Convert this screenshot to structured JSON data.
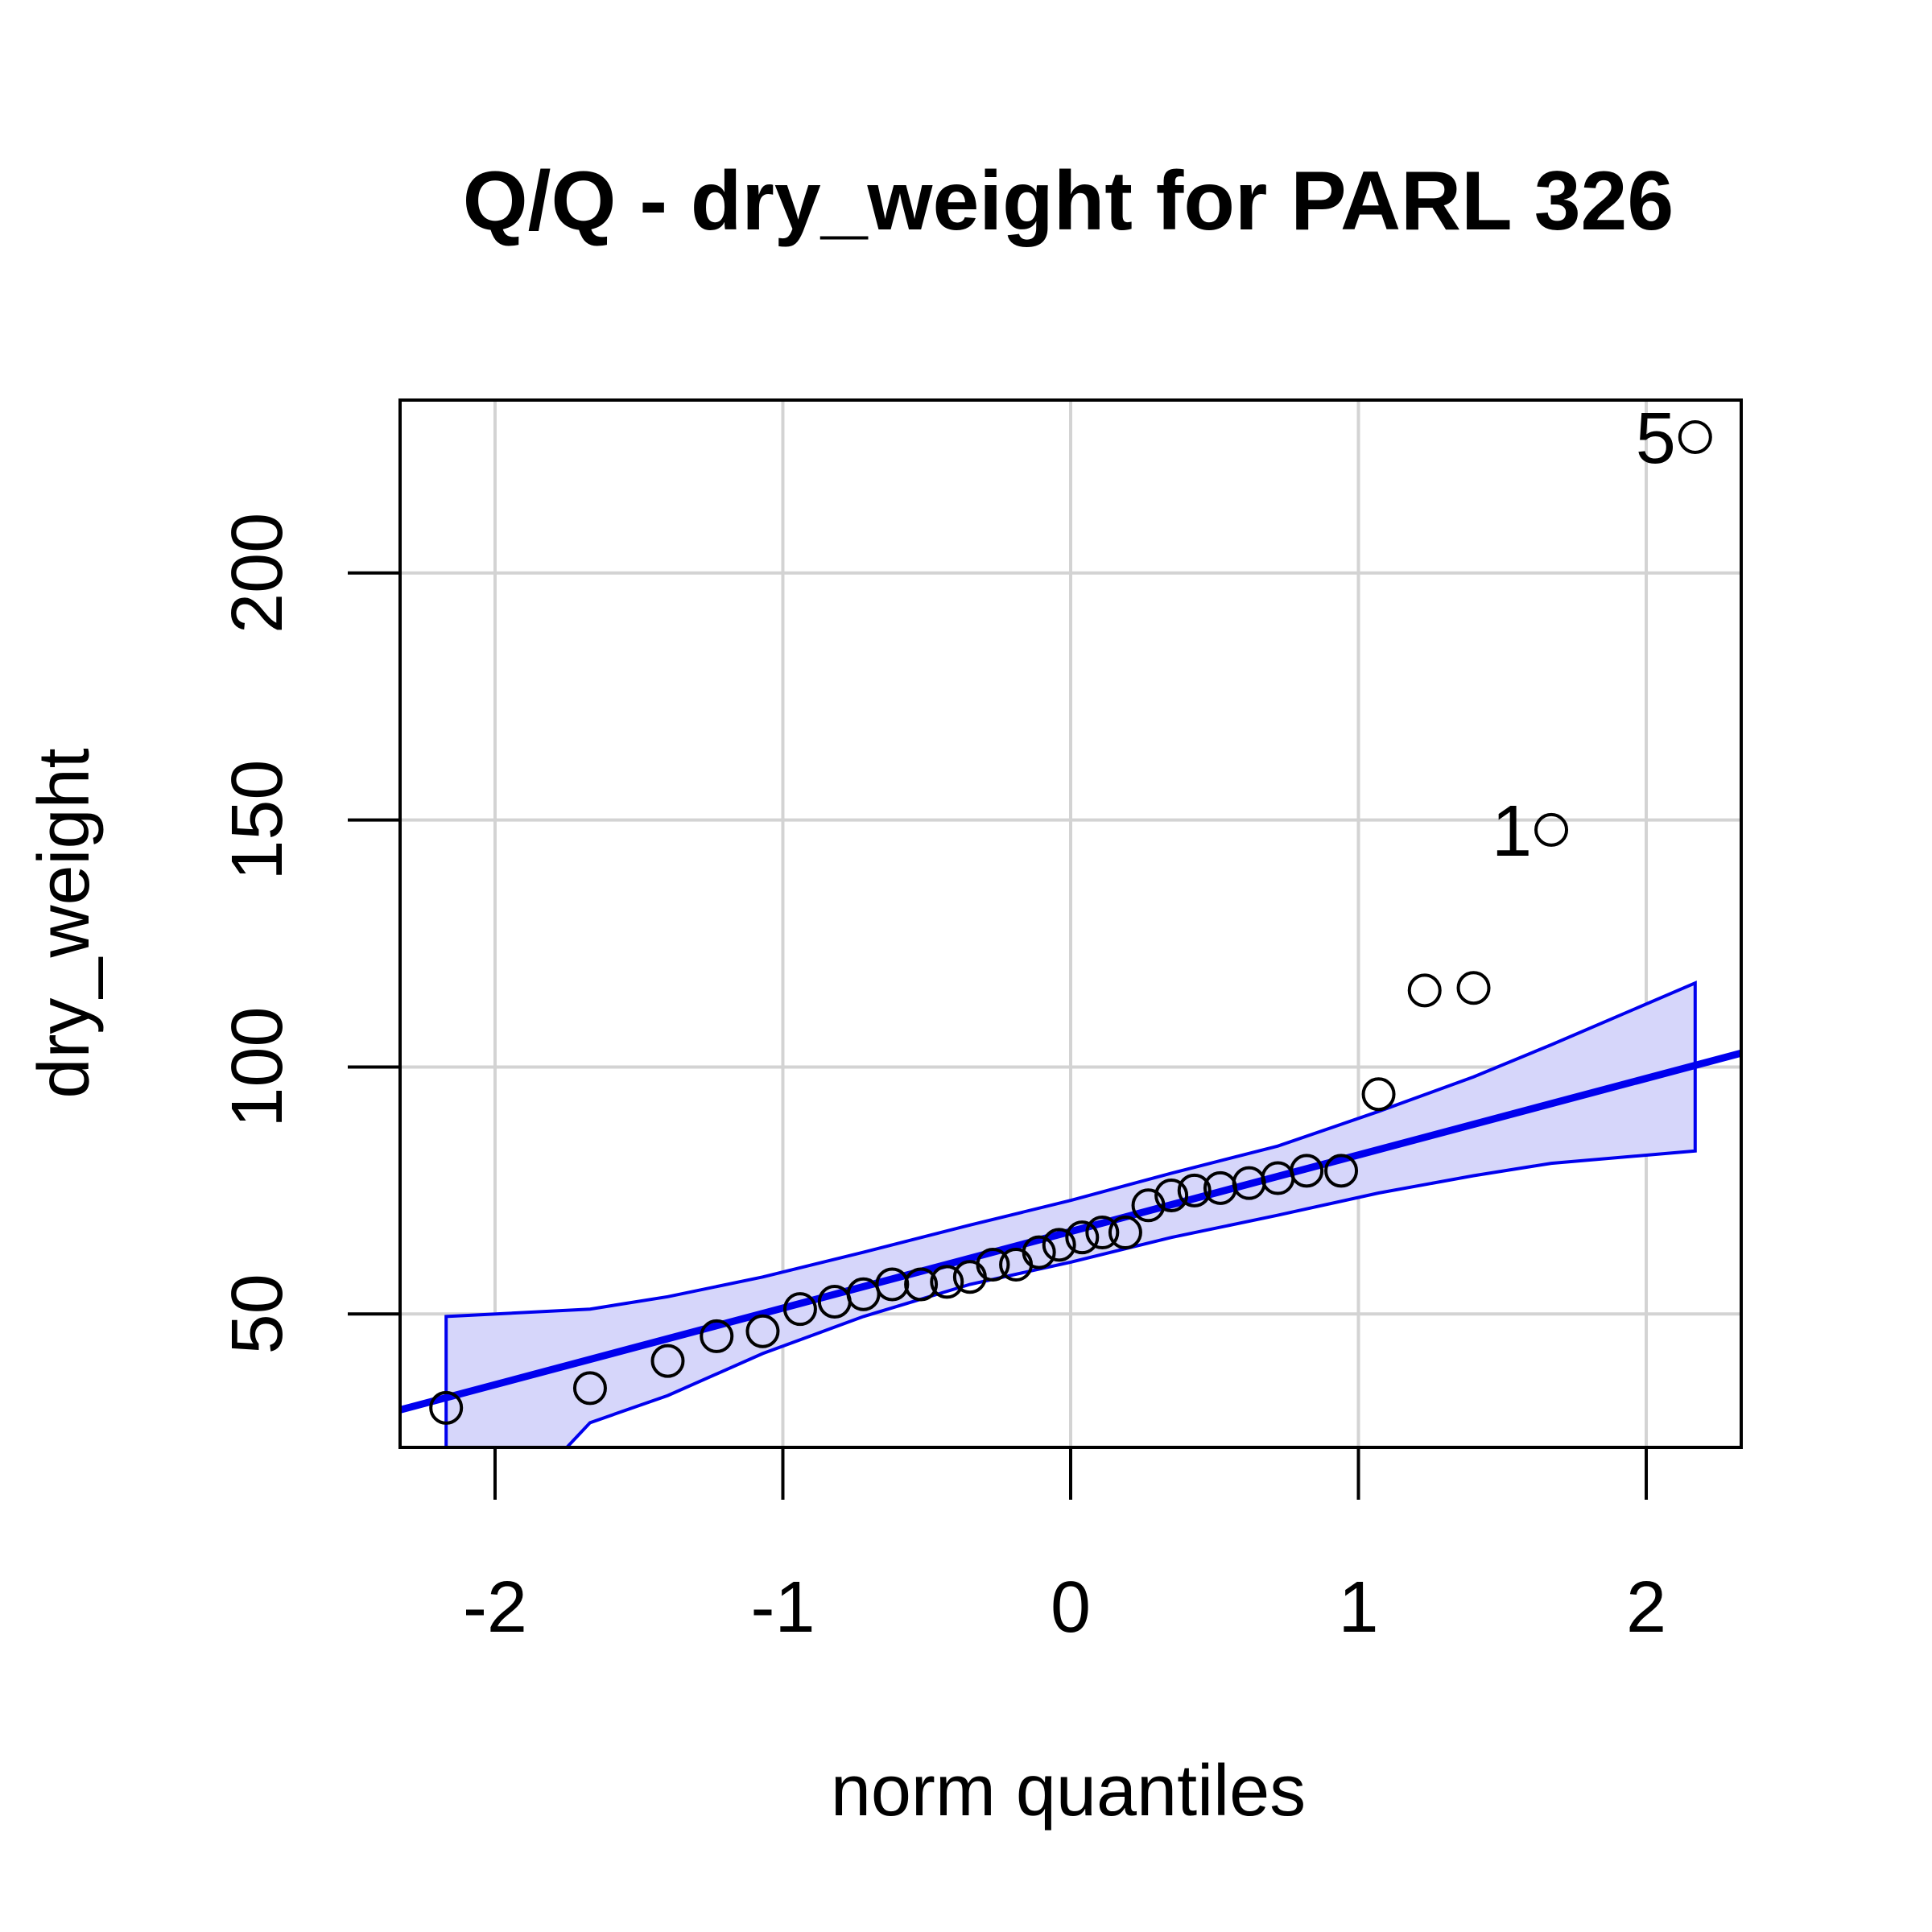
{
  "chart_data": {
    "type": "scatter",
    "title": "Q/Q - dry_weight for PARL 326",
    "xlabel": "norm quantiles",
    "ylabel": "dry_weight",
    "xlim": [
      -2.33,
      2.33
    ],
    "ylim": [
      23,
      235
    ],
    "x_ticks": [
      -2,
      -1,
      0,
      1,
      2
    ],
    "x_tick_labels": [
      "-2",
      "-1",
      "0",
      "1",
      "2"
    ],
    "y_ticks": [
      50,
      100,
      150,
      200
    ],
    "y_tick_labels": [
      "50",
      "100",
      "150",
      "200"
    ],
    "grid": true,
    "points": [
      {
        "x": -2.17,
        "y": 31
      },
      {
        "x": -1.67,
        "y": 35
      },
      {
        "x": -1.4,
        "y": 40.5
      },
      {
        "x": -1.23,
        "y": 45.5
      },
      {
        "x": -1.07,
        "y": 46.5
      },
      {
        "x": -0.94,
        "y": 51
      },
      {
        "x": -0.82,
        "y": 52.5
      },
      {
        "x": -0.72,
        "y": 54
      },
      {
        "x": -0.62,
        "y": 56
      },
      {
        "x": -0.52,
        "y": 56
      },
      {
        "x": -0.43,
        "y": 56.5
      },
      {
        "x": -0.35,
        "y": 57.5
      },
      {
        "x": -0.27,
        "y": 60
      },
      {
        "x": -0.19,
        "y": 60
      },
      {
        "x": -0.11,
        "y": 62.5
      },
      {
        "x": -0.04,
        "y": 64
      },
      {
        "x": 0.04,
        "y": 65.5
      },
      {
        "x": 0.11,
        "y": 66.5
      },
      {
        "x": 0.19,
        "y": 66.5
      },
      {
        "x": 0.27,
        "y": 72
      },
      {
        "x": 0.35,
        "y": 74
      },
      {
        "x": 0.43,
        "y": 75
      },
      {
        "x": 0.52,
        "y": 75.5
      },
      {
        "x": 0.62,
        "y": 76.5
      },
      {
        "x": 0.72,
        "y": 77.5
      },
      {
        "x": 0.82,
        "y": 79
      },
      {
        "x": 0.94,
        "y": 79
      },
      {
        "x": 1.07,
        "y": 94.5
      },
      {
        "x": 1.23,
        "y": 115.5
      },
      {
        "x": 1.4,
        "y": 116
      },
      {
        "x": 1.67,
        "y": 148,
        "label": "1"
      },
      {
        "x": 2.17,
        "y": 227.5,
        "label": "5"
      }
    ],
    "reference_line": {
      "intercept": 66.7,
      "slope": 15.5
    },
    "envelope": {
      "x": [
        -2.17,
        -1.67,
        -1.4,
        -1.07,
        -0.72,
        -0.35,
        0,
        0.35,
        0.72,
        1.07,
        1.4,
        1.67,
        2.17
      ],
      "upper": [
        49.5,
        51,
        53.5,
        57.5,
        62.5,
        68,
        73,
        78.5,
        84,
        91,
        98,
        104.5,
        117
      ],
      "lower": [
        -3,
        28,
        33.5,
        42,
        49.5,
        56,
        60.5,
        65.5,
        70,
        74.5,
        78,
        80.5,
        83
      ]
    },
    "colors": {
      "points": "#000000",
      "reference_line": "#0000ee",
      "envelope_fill": "#d6d6fa",
      "envelope_border": "#0000ee",
      "grid": "#d3d3d3",
      "axes": "#000000"
    }
  }
}
